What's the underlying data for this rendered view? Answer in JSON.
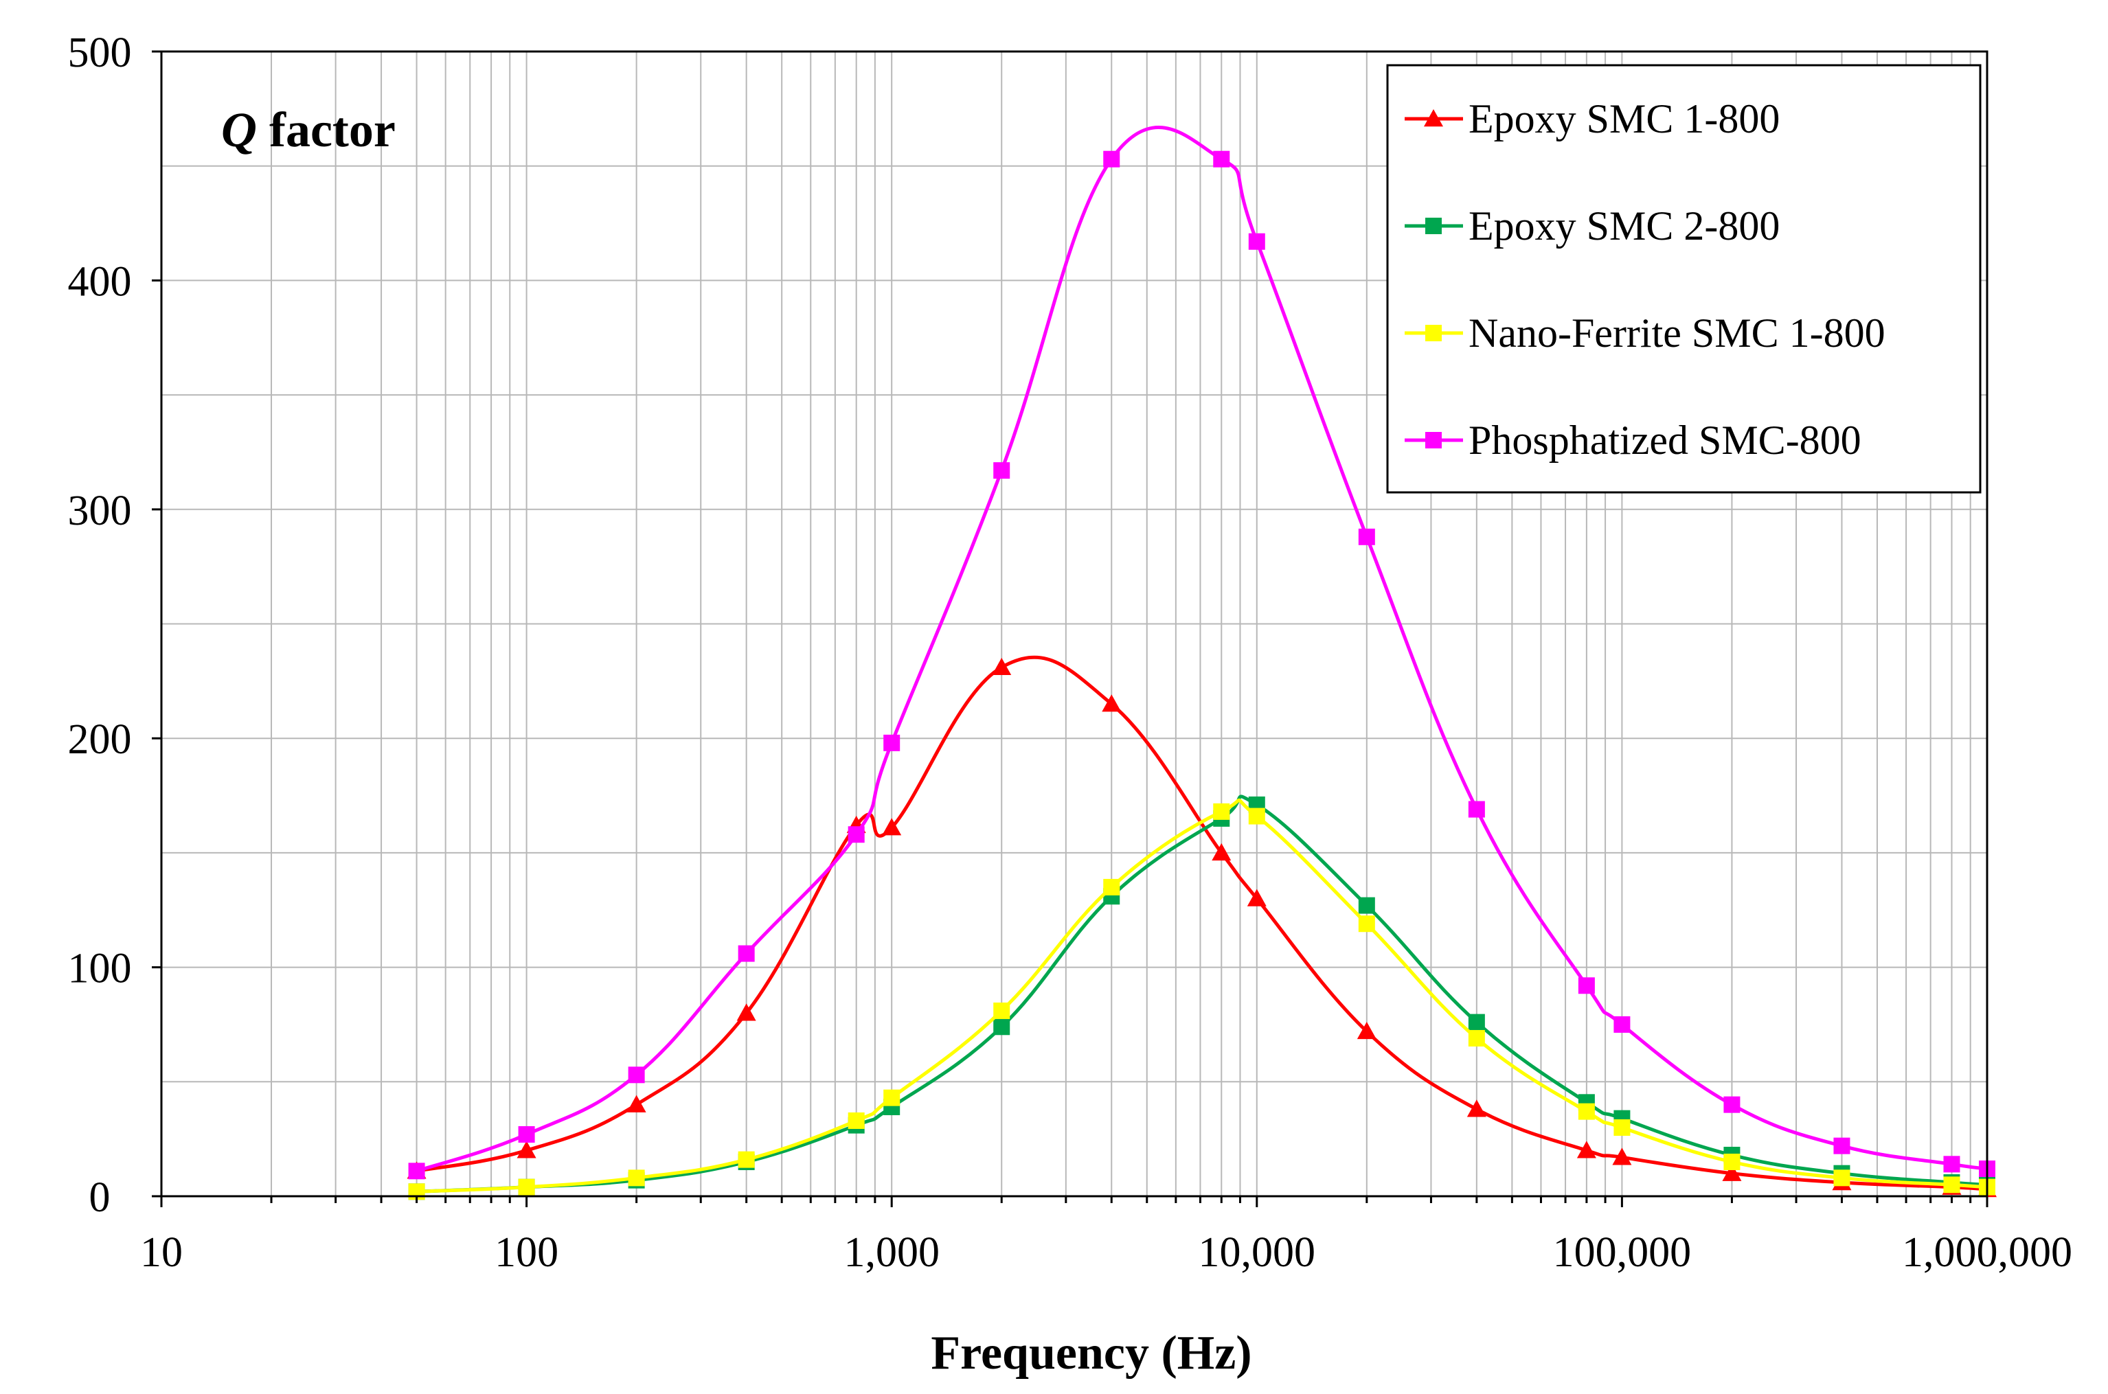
{
  "chart_data": {
    "type": "line",
    "title": "Q factor",
    "title_italic_part": "Q",
    "title_rest": " factor",
    "xlabel": "Frequency (Hz)",
    "ylabel": "",
    "xscale": "log",
    "xlim": [
      10,
      1000000
    ],
    "ylim": [
      0,
      500
    ],
    "xticks": [
      10,
      100,
      1000,
      10000,
      100000,
      1000000
    ],
    "xtick_labels": [
      "10",
      "100",
      "1,000",
      "10,000",
      "100,000",
      "1,000,000"
    ],
    "yticks": [
      0,
      100,
      200,
      300,
      400,
      500
    ],
    "ytick_labels": [
      "0",
      "100",
      "200",
      "300",
      "400",
      "500"
    ],
    "grid": true,
    "legend_position": "top-right",
    "series": [
      {
        "name": "Epoxy SMC 1-800",
        "color": "#ff0000",
        "marker": "triangle",
        "x": [
          50,
          100,
          200,
          400,
          800,
          1000,
          2000,
          4000,
          8000,
          10000,
          20000,
          40000,
          80000,
          100000,
          200000,
          400000,
          800000,
          1000000
        ],
        "y": [
          11,
          20,
          40,
          80,
          162,
          161,
          231,
          215,
          150,
          130,
          72,
          38,
          20,
          17,
          10,
          6,
          4,
          3
        ]
      },
      {
        "name": "Epoxy SMC 2-800",
        "color": "#00a64f",
        "marker": "square",
        "x": [
          50,
          100,
          200,
          400,
          800,
          1000,
          2000,
          4000,
          8000,
          10000,
          20000,
          40000,
          80000,
          100000,
          200000,
          400000,
          800000,
          1000000
        ],
        "y": [
          2,
          4,
          7,
          15,
          31,
          39,
          74,
          131,
          165,
          171,
          127,
          76,
          41,
          34,
          18,
          10,
          6,
          5
        ]
      },
      {
        "name": "Nano-Ferrite SMC 1-800",
        "color": "#ffff00",
        "marker": "square",
        "x": [
          50,
          100,
          200,
          400,
          800,
          1000,
          2000,
          4000,
          8000,
          10000,
          20000,
          40000,
          80000,
          100000,
          200000,
          400000,
          800000,
          1000000
        ],
        "y": [
          2,
          4,
          8,
          16,
          33,
          43,
          81,
          135,
          168,
          166,
          119,
          69,
          37,
          30,
          15,
          8,
          5,
          4
        ]
      },
      {
        "name": "Phosphatized SMC-800",
        "color": "#ff00ff",
        "marker": "square",
        "x": [
          50,
          100,
          200,
          400,
          800,
          1000,
          2000,
          4000,
          8000,
          10000,
          20000,
          40000,
          80000,
          100000,
          200000,
          400000,
          800000,
          1000000
        ],
        "y": [
          11,
          27,
          53,
          106,
          158,
          198,
          317,
          453,
          453,
          417,
          288,
          169,
          92,
          75,
          40,
          22,
          14,
          12
        ]
      }
    ]
  }
}
